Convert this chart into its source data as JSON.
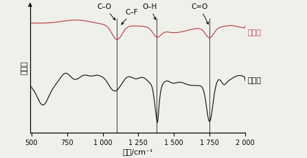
{
  "xmin": 500,
  "xmax": 2000,
  "xlabel": "波数/cm⁻¹",
  "ylabel": "透过率",
  "label_liquid": "液相法",
  "label_molten": "燔盐法",
  "color_liquid": "#b84040",
  "color_molten": "#111111",
  "vlines": [
    1100,
    1380,
    1750
  ],
  "xticks": [
    500,
    750,
    1000,
    1250,
    1500,
    1750,
    2000
  ],
  "xtick_labels": [
    "500",
    "750",
    "1 000",
    "1 250",
    "1 500",
    "1 750",
    "2 000"
  ],
  "background": "#f0f0eb",
  "annot_co": "C–O",
  "annot_cf": "C–F",
  "annot_oh": "O–H",
  "annot_co2": "C=O",
  "liq_baseline": 0.72,
  "liq_range": 0.15,
  "mol_baseline": 0.32,
  "mol_range": 0.38
}
